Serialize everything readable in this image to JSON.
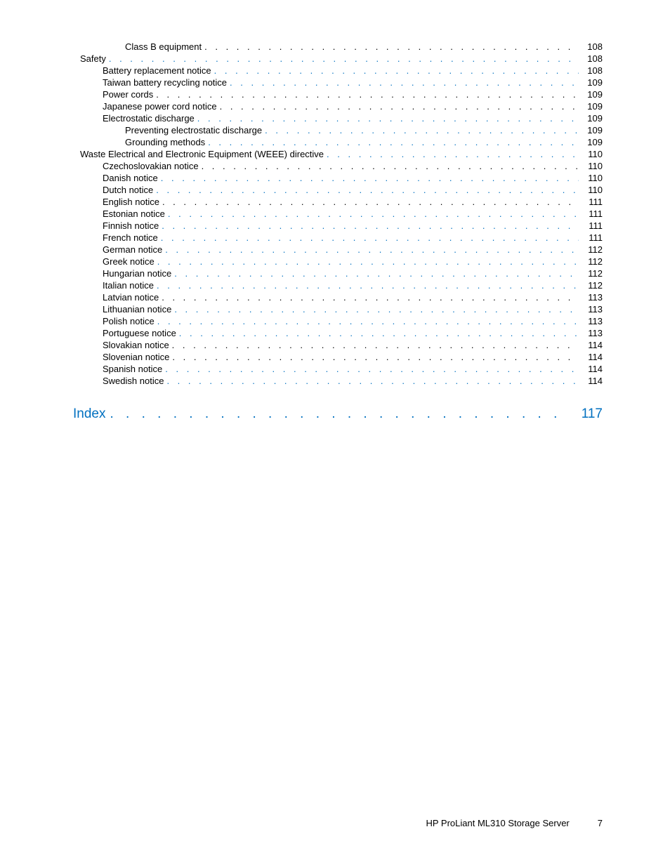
{
  "styling": {
    "link_color": "#0070c0",
    "text_color": "#000000",
    "background_color": "#ffffff",
    "body_fontsize": 13,
    "index_fontsize": 19,
    "line_height": 17
  },
  "toc": {
    "entries": [
      {
        "label": "Class B equipment",
        "page": "108",
        "indent": 2,
        "link": false
      },
      {
        "label": "Safety",
        "page": "108",
        "indent": 0,
        "link": true
      },
      {
        "label": "Battery replacement notice",
        "page": "108",
        "indent": 1,
        "link": true
      },
      {
        "label": "Taiwan battery recycling notice",
        "page": "109",
        "indent": 1,
        "link": true
      },
      {
        "label": "Power cords",
        "page": "109",
        "indent": 1,
        "link": false
      },
      {
        "label": "Japanese power cord notice",
        "page": "109",
        "indent": 1,
        "link": false
      },
      {
        "label": "Electrostatic discharge",
        "page": "109",
        "indent": 1,
        "link": true
      },
      {
        "label": "Preventing electrostatic discharge",
        "page": "109",
        "indent": 2,
        "link": true
      },
      {
        "label": "Grounding methods",
        "page": "109",
        "indent": 2,
        "link": true
      },
      {
        "label": "Waste Electrical and Electronic Equipment (WEEE) directive",
        "page": "110",
        "indent": 0,
        "link": true
      },
      {
        "label": "Czechoslovakian notice",
        "page": "110",
        "indent": 1,
        "link": false
      },
      {
        "label": "Danish notice",
        "page": "110",
        "indent": 1,
        "link": true
      },
      {
        "label": "Dutch notice",
        "page": "110",
        "indent": 1,
        "link": true
      },
      {
        "label": "English notice",
        "page": "111",
        "indent": 1,
        "link": false
      },
      {
        "label": "Estonian notice",
        "page": "111",
        "indent": 1,
        "link": true
      },
      {
        "label": "Finnish notice",
        "page": "111",
        "indent": 1,
        "link": true
      },
      {
        "label": "French notice",
        "page": "111",
        "indent": 1,
        "link": true
      },
      {
        "label": "German notice",
        "page": "112",
        "indent": 1,
        "link": true
      },
      {
        "label": "Greek notice",
        "page": "112",
        "indent": 1,
        "link": true
      },
      {
        "label": "Hungarian notice",
        "page": "112",
        "indent": 1,
        "link": true
      },
      {
        "label": "Italian notice",
        "page": "112",
        "indent": 1,
        "link": true
      },
      {
        "label": "Latvian notice",
        "page": "113",
        "indent": 1,
        "link": false
      },
      {
        "label": "Lithuanian notice",
        "page": "113",
        "indent": 1,
        "link": true
      },
      {
        "label": "Polish notice",
        "page": "113",
        "indent": 1,
        "link": true
      },
      {
        "label": "Portuguese notice",
        "page": "113",
        "indent": 1,
        "link": true
      },
      {
        "label": "Slovakian notice",
        "page": "114",
        "indent": 1,
        "link": false
      },
      {
        "label": "Slovenian notice",
        "page": "114",
        "indent": 1,
        "link": false
      },
      {
        "label": "Spanish notice",
        "page": "114",
        "indent": 1,
        "link": true
      },
      {
        "label": "Swedish notice",
        "page": "114",
        "indent": 1,
        "link": true
      }
    ]
  },
  "index": {
    "label": "Index",
    "page": "117"
  },
  "footer": {
    "title": "HP ProLiant ML310 Storage Server",
    "page": "7"
  }
}
